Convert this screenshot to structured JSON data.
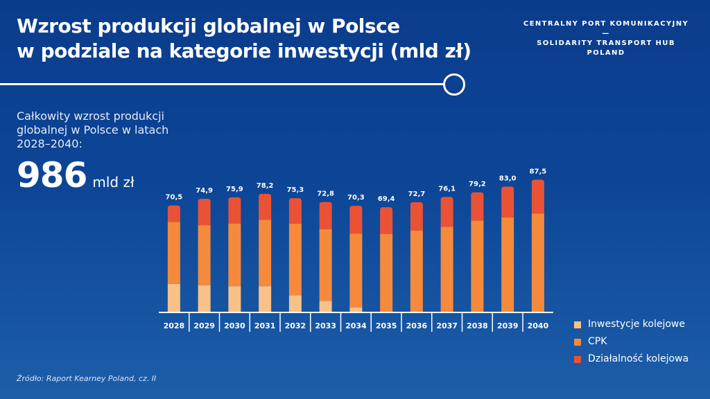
{
  "header": {
    "title_line1": "Wzrost produkcji globalnej w Polsce",
    "title_line2": "w podziale na kategorie inwestycji (mld zł)"
  },
  "brand": {
    "line1": "CENTRALNY PORT KOMUNIKACYJNY",
    "dash": "—",
    "line2": "SOLIDARITY TRANSPORT HUB",
    "line3": "POLAND"
  },
  "summary": {
    "label": "Całkowity wzrost produkcji globalnej w Polsce w latach 2028–2040:",
    "value": "986",
    "unit": "mld zł"
  },
  "legend": [
    {
      "label": "Inwestycje kolejowe",
      "color": "#f7c187"
    },
    {
      "label": "CPK",
      "color": "#f58a3c"
    },
    {
      "label": "Działalność kolejowa",
      "color": "#ea5235"
    }
  ],
  "source": "Źródło: Raport Kearney Poland, cz. II",
  "chart_data": {
    "type": "bar",
    "stacked": true,
    "categories": [
      "2028",
      "2029",
      "2030",
      "2031",
      "2032",
      "2033",
      "2034",
      "2035",
      "2036",
      "2037",
      "2038",
      "2039",
      "2040"
    ],
    "series": [
      {
        "name": "Inwestycje kolejowe",
        "color": "#f7c187",
        "values": [
          18.8,
          17.8,
          17.3,
          17.3,
          11.2,
          7.6,
          3.2,
          0,
          0,
          0,
          0,
          0,
          0
        ]
      },
      {
        "name": "CPK",
        "color": "#f58a3c",
        "values": [
          40.8,
          39.7,
          41.2,
          43.7,
          47.3,
          47.3,
          48.8,
          51.8,
          53.9,
          56.5,
          60.5,
          62.6,
          65.1
        ]
      },
      {
        "name": "Działalność kolejowa",
        "color": "#ea5235",
        "values": [
          10.9,
          17.4,
          17.4,
          17.2,
          16.8,
          17.9,
          18.3,
          17.6,
          18.8,
          19.6,
          18.7,
          20.4,
          22.4
        ]
      }
    ],
    "totals": [
      "70,5",
      "74,9",
      "75,9",
      "78,2",
      "75,3",
      "72,8",
      "70,3",
      "69,4",
      "72,7",
      "76,1",
      "79,2",
      "83,0",
      "87,5"
    ],
    "total_values": [
      70.5,
      74.9,
      75.9,
      78.2,
      75.3,
      72.8,
      70.3,
      69.4,
      72.7,
      76.1,
      79.2,
      83.0,
      87.5
    ],
    "ylim": [
      0,
      90
    ],
    "grid": false,
    "legend_position": "bottom-right"
  }
}
